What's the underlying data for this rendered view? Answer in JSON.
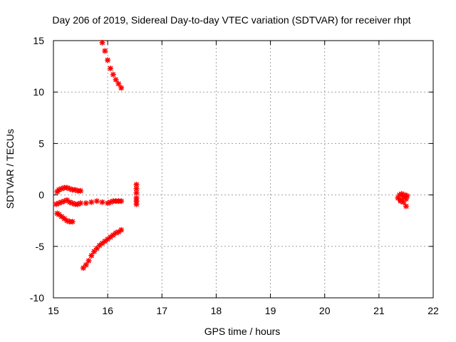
{
  "chart_data": {
    "type": "scatter",
    "title": "Day 206 of 2019, Sidereal Day-to-day VTEC variation (SDTVAR) for receiver rhpt",
    "xlabel": "GPS time / hours",
    "ylabel": "SDTVAR / TECUs",
    "xlim": [
      15,
      22
    ],
    "ylim": [
      -10,
      15
    ],
    "x_ticks": [
      "15",
      "16",
      "17",
      "18",
      "19",
      "20",
      "21",
      "22"
    ],
    "y_ticks": [
      "15",
      "10",
      "5",
      "0",
      "-5",
      "-10"
    ],
    "grid": true,
    "marker": "star",
    "color": "#ff0000",
    "segments": [
      {
        "x": [
          15.9,
          15.95,
          16.0,
          16.05,
          16.1,
          16.15,
          16.2,
          16.25
        ],
        "y": [
          14.8,
          14.0,
          13.1,
          12.3,
          11.7,
          11.2,
          10.8,
          10.4
        ]
      },
      {
        "x": [
          15.55,
          15.6,
          15.65,
          15.7,
          15.75,
          15.8,
          15.85,
          15.9,
          15.95,
          16.0,
          16.05,
          16.1,
          16.15,
          16.2,
          16.25
        ],
        "y": [
          -7.1,
          -6.8,
          -6.4,
          -5.9,
          -5.5,
          -5.2,
          -4.9,
          -4.7,
          -4.5,
          -4.3,
          -4.1,
          -3.9,
          -3.7,
          -3.6,
          -3.4
        ]
      },
      {
        "x": [
          15.07,
          15.1,
          15.15,
          15.2,
          15.25,
          15.3,
          15.35,
          15.4,
          15.45,
          15.5
        ],
        "y": [
          0.3,
          0.5,
          0.6,
          0.7,
          0.7,
          0.6,
          0.5,
          0.5,
          0.4,
          0.4
        ]
      },
      {
        "x": [
          15.05,
          15.1,
          15.15,
          15.2,
          15.25,
          15.3,
          15.35,
          15.4,
          15.45,
          15.5,
          15.6,
          15.7,
          15.8,
          15.9,
          16.0,
          16.05,
          16.1,
          16.15,
          16.2,
          16.25
        ],
        "y": [
          -0.9,
          -0.8,
          -0.7,
          -0.6,
          -0.5,
          -0.7,
          -0.8,
          -0.9,
          -0.9,
          -0.8,
          -0.8,
          -0.7,
          -0.6,
          -0.7,
          -0.8,
          -0.7,
          -0.6,
          -0.6,
          -0.6,
          -0.6
        ]
      },
      {
        "x": [
          15.07,
          15.1,
          15.15,
          15.2,
          15.25,
          15.3,
          15.35
        ],
        "y": [
          -1.8,
          -1.9,
          -2.1,
          -2.3,
          -2.5,
          -2.6,
          -2.6
        ]
      },
      {
        "x": [
          16.53,
          16.53,
          16.53,
          16.53,
          16.53,
          16.53
        ],
        "y": [
          1.0,
          0.6,
          0.2,
          -0.3,
          -0.6,
          -0.9
        ]
      },
      {
        "x": [
          21.35,
          21.38,
          21.4,
          21.42,
          21.45,
          21.48,
          21.5,
          21.52,
          21.4,
          21.45,
          21.5
        ],
        "y": [
          -0.3,
          0.0,
          -0.5,
          0.1,
          -0.2,
          0.0,
          -0.4,
          -0.1,
          -0.6,
          -0.7,
          -1.1
        ]
      }
    ]
  }
}
